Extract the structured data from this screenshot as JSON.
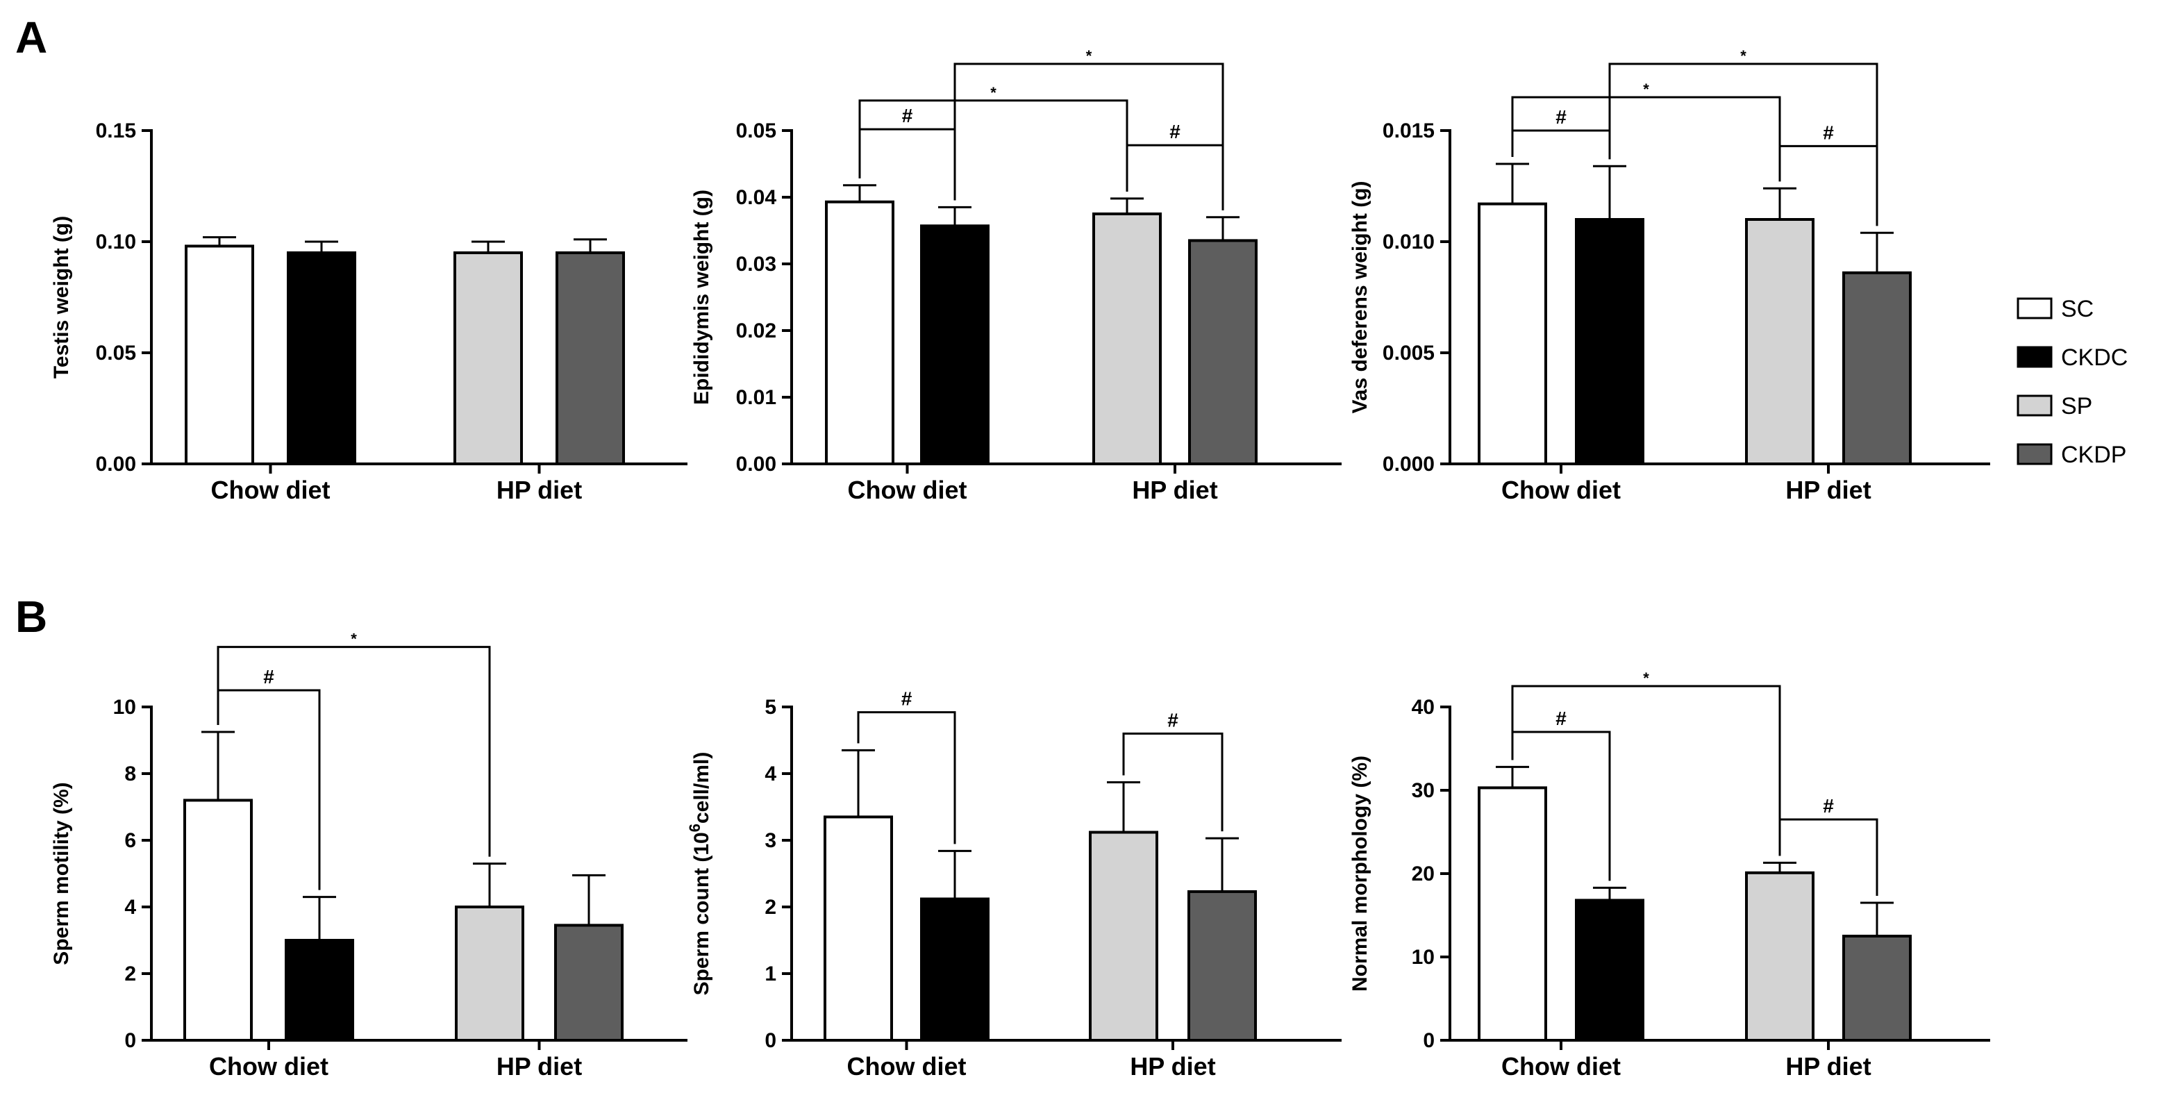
{
  "panels": {
    "a": "A",
    "b": "B"
  },
  "legend": [
    {
      "label": "SC",
      "color": "#ffffff"
    },
    {
      "label": "CKDC",
      "color": "#000000"
    },
    {
      "label": "SP",
      "color": "#d3d3d3"
    },
    {
      "label": "CKDP",
      "color": "#5e5e5e"
    }
  ],
  "chart_data": [
    {
      "type": "bar",
      "panel": "A",
      "ylabel": "Testis weight (g)",
      "categories": [
        "Chow diet",
        "HP diet"
      ],
      "ylim": [
        0,
        0.15
      ],
      "yticks": [
        "0.00",
        "0.05",
        "0.10",
        "0.15"
      ],
      "ytick_values": [
        0,
        0.05,
        0.1,
        0.15
      ],
      "bars": [
        {
          "group": "SC",
          "category": "Chow diet",
          "value": 0.098,
          "error": 0.004
        },
        {
          "group": "CKDC",
          "category": "Chow diet",
          "value": 0.095,
          "error": 0.005
        },
        {
          "group": "SP",
          "category": "HP diet",
          "value": 0.095,
          "error": 0.005
        },
        {
          "group": "CKDP",
          "category": "HP diet",
          "value": 0.095,
          "error": 0.006
        }
      ],
      "brackets": []
    },
    {
      "type": "bar",
      "panel": "A",
      "ylabel": "Epididymis weight (g)",
      "categories": [
        "Chow diet",
        "HP diet"
      ],
      "ylim": [
        0,
        0.05
      ],
      "yticks": [
        "0.00",
        "0.01",
        "0.02",
        "0.03",
        "0.04",
        "0.05"
      ],
      "ytick_values": [
        0,
        0.01,
        0.02,
        0.03,
        0.04,
        0.05
      ],
      "bars": [
        {
          "group": "SC",
          "category": "Chow diet",
          "value": 0.0393,
          "error": 0.0025
        },
        {
          "group": "CKDC",
          "category": "Chow diet",
          "value": 0.0357,
          "error": 0.0028
        },
        {
          "group": "SP",
          "category": "HP diet",
          "value": 0.0375,
          "error": 0.0023
        },
        {
          "group": "CKDP",
          "category": "HP diet",
          "value": 0.0335,
          "error": 0.0035
        }
      ],
      "brackets": [
        {
          "from": 0,
          "to": 1,
          "level": 0.0502,
          "symbol": "#"
        },
        {
          "from": 2,
          "to": 3,
          "level": 0.0478,
          "symbol": "#"
        },
        {
          "from": 0,
          "to": 2,
          "level": 0.0545,
          "symbol": "*"
        },
        {
          "from": 1,
          "to": 3,
          "level": 0.06,
          "symbol": "*"
        }
      ]
    },
    {
      "type": "bar",
      "panel": "A",
      "ylabel": "Vas deferens weight (g)",
      "categories": [
        "Chow diet",
        "HP diet"
      ],
      "ylim": [
        0,
        0.015
      ],
      "yticks": [
        "0.000",
        "0.005",
        "0.010",
        "0.015"
      ],
      "ytick_values": [
        0,
        0.005,
        0.01,
        0.015
      ],
      "bars": [
        {
          "group": "SC",
          "category": "Chow diet",
          "value": 0.0117,
          "error": 0.0018
        },
        {
          "group": "CKDC",
          "category": "Chow diet",
          "value": 0.011,
          "error": 0.0024
        },
        {
          "group": "SP",
          "category": "HP diet",
          "value": 0.011,
          "error": 0.0014
        },
        {
          "group": "CKDP",
          "category": "HP diet",
          "value": 0.0086,
          "error": 0.0018
        }
      ],
      "brackets": [
        {
          "from": 0,
          "to": 1,
          "level": 0.015,
          "symbol": "#"
        },
        {
          "from": 2,
          "to": 3,
          "level": 0.0143,
          "symbol": "#"
        },
        {
          "from": 0,
          "to": 2,
          "level": 0.0165,
          "symbol": "*"
        },
        {
          "from": 1,
          "to": 3,
          "level": 0.018,
          "symbol": "*"
        }
      ]
    },
    {
      "type": "bar",
      "panel": "B",
      "ylabel": "Sperm motility (%)",
      "categories": [
        "Chow diet",
        "HP diet"
      ],
      "ylim": [
        0,
        10
      ],
      "yticks": [
        "0",
        "2",
        "4",
        "6",
        "8",
        "10"
      ],
      "ytick_values": [
        0,
        2,
        4,
        6,
        8,
        10
      ],
      "bars": [
        {
          "group": "SC",
          "category": "Chow diet",
          "value": 7.2,
          "error": 2.05
        },
        {
          "group": "CKDC",
          "category": "Chow diet",
          "value": 3.0,
          "error": 1.3
        },
        {
          "group": "SP",
          "category": "HP diet",
          "value": 4.0,
          "error": 1.3
        },
        {
          "group": "CKDP",
          "category": "HP diet",
          "value": 3.45,
          "error": 1.5
        }
      ],
      "brackets": [
        {
          "from": 0,
          "to": 1,
          "level": 10.5,
          "symbol": "#"
        },
        {
          "from": 0,
          "to": 2,
          "level": 11.8,
          "symbol": "*"
        }
      ]
    },
    {
      "type": "bar",
      "panel": "B",
      "ylabel_parts": [
        "Sperm count (10",
        "6",
        "cell/ml)"
      ],
      "categories": [
        "Chow diet",
        "HP diet"
      ],
      "ylim": [
        0,
        5
      ],
      "yticks": [
        "0",
        "1",
        "2",
        "3",
        "4",
        "5"
      ],
      "ytick_values": [
        0,
        1,
        2,
        3,
        4,
        5
      ],
      "bars": [
        {
          "group": "SC",
          "category": "Chow diet",
          "value": 3.35,
          "error": 1.0
        },
        {
          "group": "CKDC",
          "category": "Chow diet",
          "value": 2.12,
          "error": 0.72
        },
        {
          "group": "SP",
          "category": "HP diet",
          "value": 3.12,
          "error": 0.75
        },
        {
          "group": "CKDP",
          "category": "HP diet",
          "value": 2.23,
          "error": 0.8
        }
      ],
      "brackets": [
        {
          "from": 0,
          "to": 1,
          "level": 4.92,
          "symbol": "#"
        },
        {
          "from": 2,
          "to": 3,
          "level": 4.6,
          "symbol": "#"
        }
      ]
    },
    {
      "type": "bar",
      "panel": "B",
      "ylabel": "Normal morphology (%)",
      "categories": [
        "Chow diet",
        "HP diet"
      ],
      "ylim": [
        0,
        40
      ],
      "yticks": [
        "0",
        "10",
        "20",
        "30",
        "40"
      ],
      "ytick_values": [
        0,
        10,
        20,
        30,
        40
      ],
      "bars": [
        {
          "group": "SC",
          "category": "Chow diet",
          "value": 30.3,
          "error": 2.5
        },
        {
          "group": "CKDC",
          "category": "Chow diet",
          "value": 16.8,
          "error": 1.5
        },
        {
          "group": "SP",
          "category": "HP diet",
          "value": 20.1,
          "error": 1.2
        },
        {
          "group": "CKDP",
          "category": "HP diet",
          "value": 12.5,
          "error": 4.0
        }
      ],
      "brackets": [
        {
          "from": 0,
          "to": 1,
          "level": 37.0,
          "symbol": "#"
        },
        {
          "from": 2,
          "to": 3,
          "level": 26.5,
          "symbol": "#"
        },
        {
          "from": 0,
          "to": 2,
          "level": 42.5,
          "symbol": "*"
        }
      ]
    }
  ]
}
